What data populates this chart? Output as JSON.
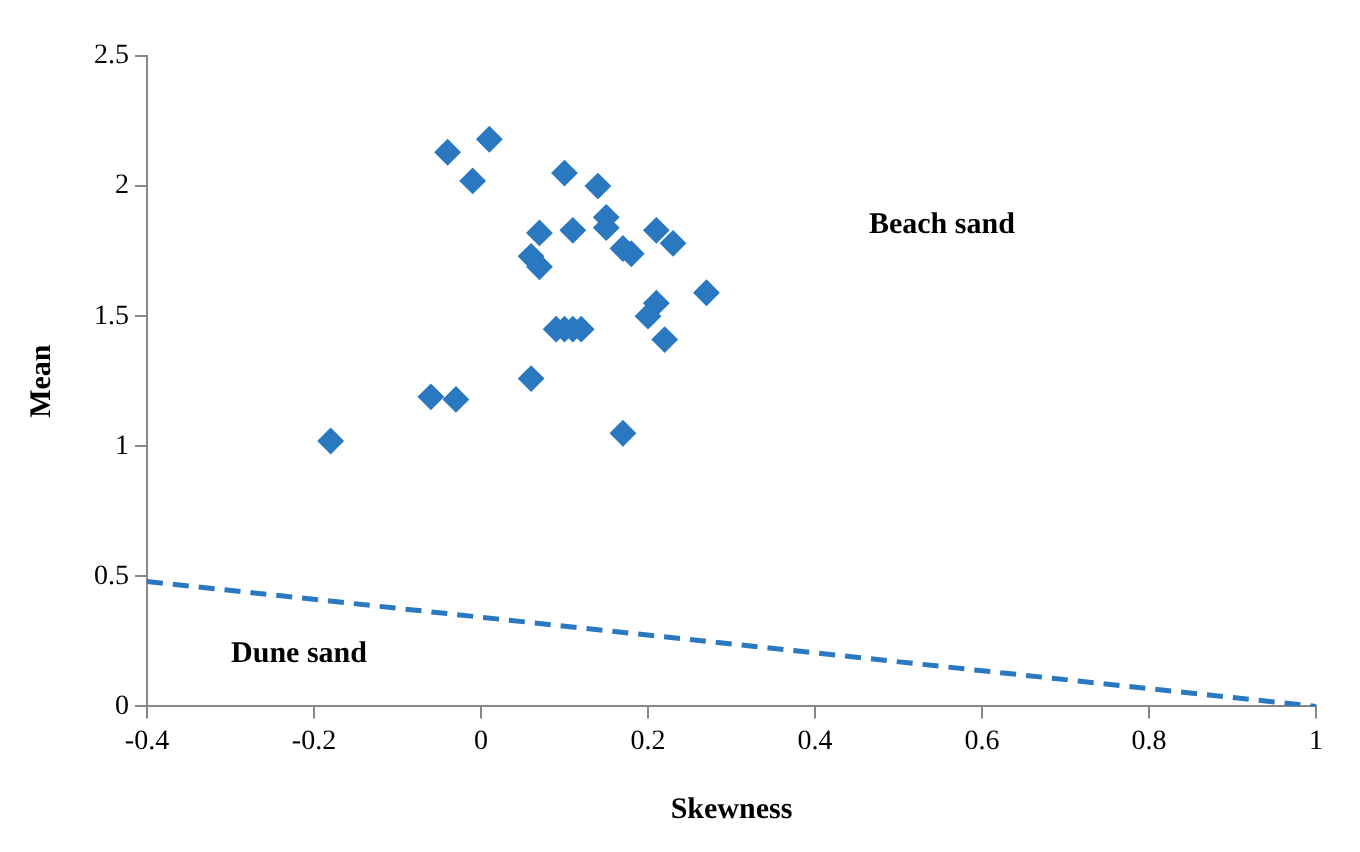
{
  "chart_data": {
    "type": "scatter",
    "xlabel": "Skewness",
    "ylabel": "Mean",
    "xlim": [
      -0.4,
      1
    ],
    "xticks": [
      -0.4,
      -0.2,
      0,
      0.2,
      0.4,
      0.6,
      0.8,
      1
    ],
    "ylim": [
      0,
      2.5
    ],
    "yticks": [
      0,
      0.5,
      1,
      1.5,
      2,
      2.5
    ],
    "grid": false,
    "legend": false,
    "series": [
      {
        "type": "scatter",
        "marker": "diamond",
        "color": "#2a78c0",
        "x": [
          -0.18,
          -0.06,
          -0.03,
          -0.04,
          0.01,
          -0.01,
          0.06,
          0.06,
          0.07,
          0.07,
          0.09,
          0.1,
          0.11,
          0.12,
          0.1,
          0.11,
          0.14,
          0.15,
          0.15,
          0.17,
          0.18,
          0.17,
          0.2,
          0.21,
          0.21,
          0.22,
          0.23,
          0.27
        ],
        "values": [
          1.02,
          1.19,
          1.18,
          2.13,
          2.18,
          2.02,
          1.26,
          1.73,
          1.69,
          1.82,
          1.45,
          1.45,
          1.45,
          1.45,
          2.05,
          1.83,
          2.0,
          1.88,
          1.84,
          1.05,
          1.74,
          1.76,
          1.5,
          1.55,
          1.83,
          1.41,
          1.78,
          1.59
        ]
      },
      {
        "type": "line",
        "marker": "none",
        "line_style": "dashed",
        "color": "#2a78c0",
        "x": [
          -0.4,
          1
        ],
        "values": [
          0.48,
          0
        ]
      }
    ],
    "annotations": [
      "Beach sand",
      "Dune sand"
    ]
  }
}
